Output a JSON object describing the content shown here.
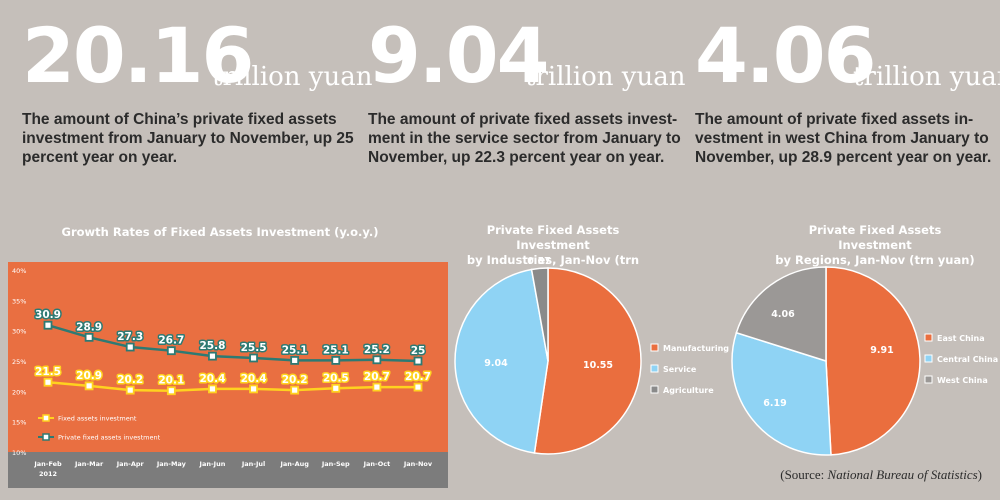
{
  "stats": [
    {
      "value": "20.16",
      "unit": "trillion yuan",
      "desc_lines": [
        "The amount of China’s private fixed assets",
        "investment from January to November, up 25",
        "percent year on year."
      ]
    },
    {
      "value": "9.04",
      "unit": "trillion yuan",
      "desc_lines": [
        "The amount of private fixed assets invest-",
        "ment in the service sector from January to",
        "November, up 22.3 percent year on year."
      ]
    },
    {
      "value": "4.06",
      "unit": "trillion yuan",
      "desc_lines": [
        "The amount of private fixed assets in-",
        "vestment in west China from January to",
        "November, up 28.9 percent year on year."
      ]
    }
  ],
  "source": {
    "prefix": "(Source: ",
    "name": "National Bureau of Statistics",
    "suffix": ")"
  },
  "colors": {
    "background": "#c5bfba",
    "panel": "#e96f41",
    "yellow": "#ffd21f",
    "teal": "#2d7a73",
    "manufacturing": "#ea6e3e",
    "service": "#8fd3f4",
    "agriculture": "#8a8a8a",
    "west": "#9b9896"
  },
  "chart_data": [
    {
      "type": "line",
      "title": "Growth Rates of Fixed Assets Investment (y.o.y.)",
      "categories": [
        "Jan-Feb",
        "Jan-Mar",
        "Jan-Apr",
        "Jan-May",
        "Jan-Jun",
        "Jan-Jul",
        "Jan-Aug",
        "Jan-Sep",
        "Jan-Oct",
        "Jan-Nov"
      ],
      "first_category_sub": "2012",
      "yticks": [
        "10%",
        "15%",
        "20%",
        "25%",
        "30%",
        "35%",
        "40%"
      ],
      "ylim": [
        10,
        40
      ],
      "grid": false,
      "legend_position": "bottom-left",
      "series": [
        {
          "name": "Fixed assets investment",
          "values": [
            21.5,
            20.9,
            20.2,
            20.1,
            20.4,
            20.4,
            20.2,
            20.5,
            20.7,
            20.7
          ],
          "labels": [
            "21.5",
            "20.9",
            "20.2",
            "20.1",
            "20.4",
            "20.4",
            "20.2",
            "20.5",
            "20.7",
            "20.7"
          ],
          "color": "#ffd21f"
        },
        {
          "name": "Private fixed assets investment",
          "values": [
            30.9,
            28.9,
            27.3,
            26.7,
            25.8,
            25.5,
            25.1,
            25.1,
            25.2,
            25
          ],
          "labels": [
            "30.9",
            "28.9",
            "27.3",
            "26.7",
            "25.8",
            "25.5",
            "25.1",
            "25.1",
            "25.2",
            "25"
          ],
          "color": "#2d7a73"
        }
      ]
    },
    {
      "type": "pie",
      "title_lines": [
        "Private Fixed Assets Investment",
        "by Industries, Jan-Nov (trn yuan)"
      ],
      "slices": [
        {
          "label": "Manufacturing",
          "value": 10.55,
          "value_label": "10.55",
          "color": "#ea6e3e"
        },
        {
          "label": "Service",
          "value": 9.04,
          "value_label": "9.04",
          "color": "#8fd3f4"
        },
        {
          "label": "Agriculture",
          "value": 0.57,
          "value_label": "0.57",
          "color": "#8a8a8a"
        }
      ],
      "legend_position": "right"
    },
    {
      "type": "pie",
      "title_lines": [
        "Private Fixed Assets Investment",
        "by Regions, Jan-Nov (trn yuan)"
      ],
      "slices": [
        {
          "label": "East China",
          "value": 9.91,
          "value_label": "9.91",
          "color": "#ea6e3e"
        },
        {
          "label": "Central China",
          "value": 6.19,
          "value_label": "6.19",
          "color": "#8fd3f4"
        },
        {
          "label": "West China",
          "value": 4.06,
          "value_label": "4.06",
          "color": "#9b9896"
        }
      ],
      "legend_position": "right"
    }
  ]
}
